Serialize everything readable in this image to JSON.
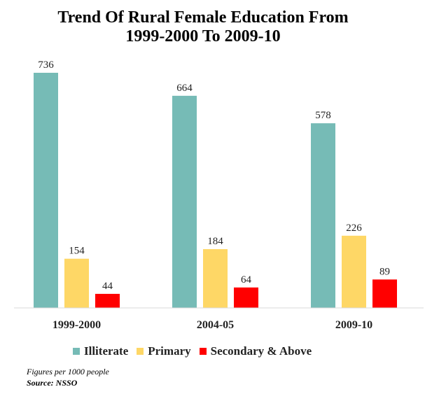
{
  "chart_data": {
    "type": "bar",
    "title": [
      "Trend Of Rural Female Education From",
      "1999-2000 To 2009-10"
    ],
    "categories": [
      "1999-2000",
      "2004-05",
      "2009-10"
    ],
    "series": [
      {
        "name": "Illiterate",
        "color": "#76bbb6",
        "values": [
          736,
          664,
          578
        ]
      },
      {
        "name": "Primary",
        "color": "#fed766",
        "values": [
          154,
          184,
          226
        ]
      },
      {
        "name": "Secondary & Above",
        "color": "#ff0000",
        "values": [
          44,
          64,
          89
        ]
      }
    ],
    "xlabel": "",
    "ylabel": "",
    "ylim": [
      0,
      800
    ],
    "grid": false,
    "legend": "bottom"
  },
  "notes": {
    "figures": "Figures per 1000 people",
    "source": "Source: NSSO"
  }
}
